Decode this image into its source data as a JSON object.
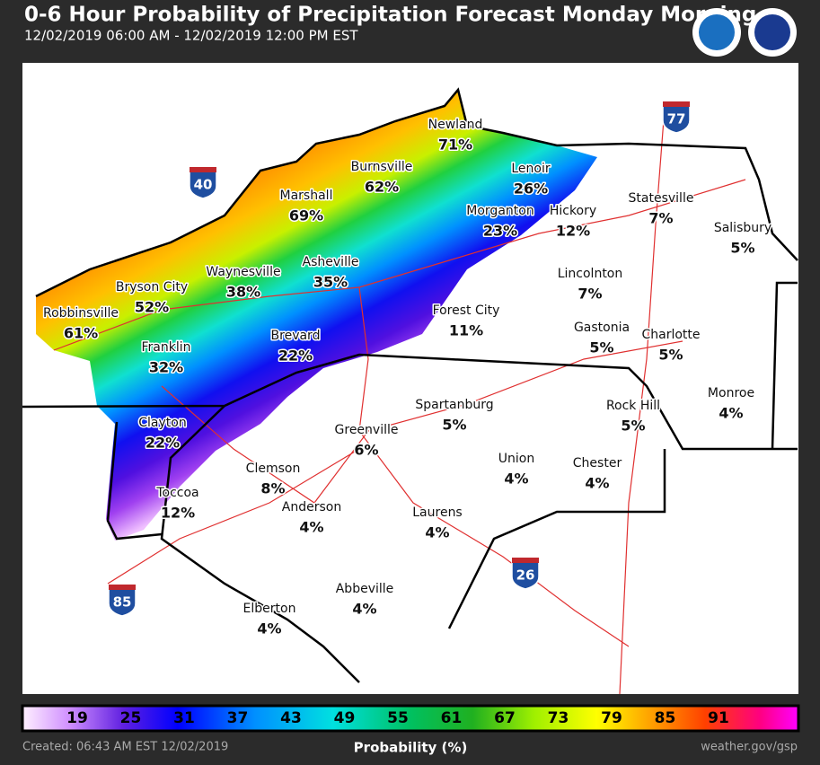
{
  "header": {
    "title": "0-6 Hour Probability of Precipitation Forecast Monday Morning",
    "subtitle": "12/02/2019 06:00 AM - 12/02/2019 12:00 PM EST"
  },
  "cities": [
    {
      "name": "Newland",
      "forecast": "71%"
    },
    {
      "name": "Burnsville",
      "forecast": "62%"
    },
    {
      "name": "Marshall",
      "forecast": "69%"
    },
    {
      "name": "Lenoir",
      "forecast": "26%"
    },
    {
      "name": "Morganton",
      "forecast": "23%"
    },
    {
      "name": "Hickory",
      "forecast": "12%"
    },
    {
      "name": "Statesville",
      "forecast": "7%"
    },
    {
      "name": "Salisbury",
      "forecast": "5%"
    },
    {
      "name": "Asheville",
      "forecast": "35%"
    },
    {
      "name": "Waynesville",
      "forecast": "38%"
    },
    {
      "name": "Bryson City",
      "forecast": "52%"
    },
    {
      "name": "Robbinsville",
      "forecast": "61%"
    },
    {
      "name": "Lincolnton",
      "forecast": "7%"
    },
    {
      "name": "Forest City",
      "forecast": "11%"
    },
    {
      "name": "Gastonia",
      "forecast": "5%"
    },
    {
      "name": "Charlotte",
      "forecast": "5%"
    },
    {
      "name": "Franklin",
      "forecast": "32%"
    },
    {
      "name": "Brevard",
      "forecast": "22%"
    },
    {
      "name": "Monroe",
      "forecast": "4%"
    },
    {
      "name": "Spartanburg",
      "forecast": "5%"
    },
    {
      "name": "Rock Hill",
      "forecast": "5%"
    },
    {
      "name": "Greenville",
      "forecast": "6%"
    },
    {
      "name": "Clayton",
      "forecast": "22%"
    },
    {
      "name": "Union",
      "forecast": "4%"
    },
    {
      "name": "Chester",
      "forecast": "4%"
    },
    {
      "name": "Clemson",
      "forecast": "8%"
    },
    {
      "name": "Anderson",
      "forecast": "4%"
    },
    {
      "name": "Toccoa",
      "forecast": "12%"
    },
    {
      "name": "Laurens",
      "forecast": "4%"
    },
    {
      "name": "Abbeville",
      "forecast": "4%"
    },
    {
      "name": "Elberton",
      "forecast": "4%"
    }
  ],
  "interstates": [
    "40",
    "77",
    "85",
    "26"
  ],
  "legend": {
    "ticks": [
      19,
      25,
      31,
      37,
      43,
      49,
      55,
      61,
      67,
      73,
      79,
      85,
      91
    ],
    "title": "Probability (%)"
  },
  "footer": {
    "created": "Created: 06:43 AM EST 12/02/2019",
    "site": "weather.gov/gsp"
  }
}
